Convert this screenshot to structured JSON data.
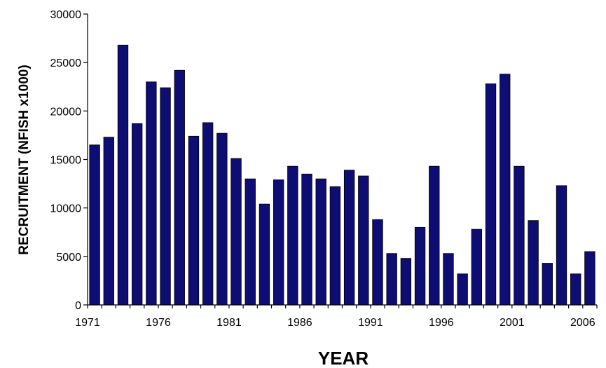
{
  "chart_data": {
    "type": "bar",
    "title": "",
    "xlabel": "YEAR",
    "ylabel": "RECRUITMENT (NFISH x1000)",
    "ylim": [
      0,
      30000
    ],
    "yticks": [
      0,
      5000,
      10000,
      15000,
      20000,
      25000,
      30000
    ],
    "xtick_labels": [
      "1971",
      "1976",
      "1981",
      "1986",
      "1991",
      "1996",
      "2001",
      "2006"
    ],
    "grid": false,
    "legend": "none",
    "bar_color": "#0d0d73",
    "categories": [
      1971,
      1972,
      1973,
      1974,
      1975,
      1976,
      1977,
      1978,
      1979,
      1980,
      1981,
      1982,
      1983,
      1984,
      1985,
      1986,
      1987,
      1988,
      1989,
      1990,
      1991,
      1992,
      1993,
      1994,
      1995,
      1996,
      1997,
      1998,
      1999,
      2000,
      2001,
      2002,
      2003,
      2004,
      2005,
      2006
    ],
    "values": [
      16500,
      17300,
      26800,
      18700,
      23000,
      22400,
      24200,
      17400,
      18800,
      17700,
      15100,
      13000,
      10400,
      12900,
      14300,
      13500,
      13000,
      12200,
      13900,
      13300,
      8800,
      5300,
      4800,
      8000,
      14300,
      5300,
      3200,
      7800,
      22800,
      23800,
      14300,
      8700,
      4300,
      12300,
      3200,
      5500
    ]
  }
}
